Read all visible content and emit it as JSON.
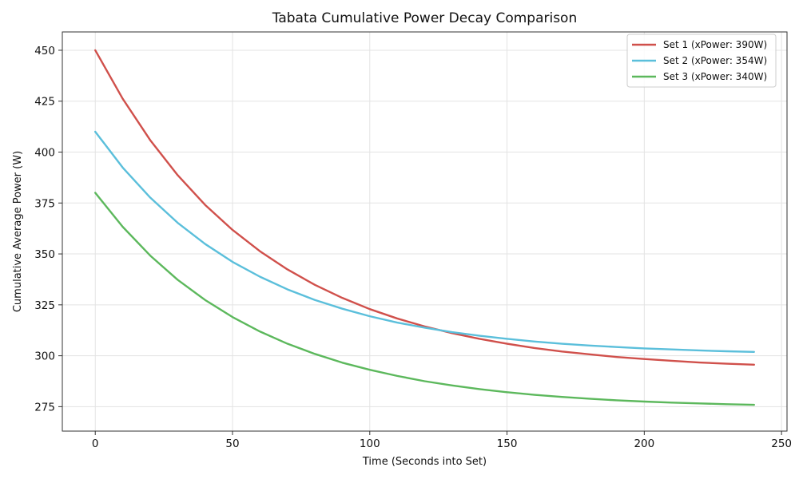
{
  "chart_data": {
    "type": "line",
    "title": "Tabata Cumulative Power Decay Comparison",
    "xlabel": "Time (Seconds into Set)",
    "ylabel": "Cumulative Average Power (W)",
    "xlim": [
      -12,
      252
    ],
    "ylim": [
      263,
      459
    ],
    "xticks": [
      0,
      50,
      100,
      150,
      200,
      250
    ],
    "yticks": [
      275,
      300,
      325,
      350,
      375,
      400,
      425,
      450
    ],
    "grid": true,
    "legend_position": "top-right",
    "x": [
      0,
      10,
      20,
      30,
      40,
      50,
      60,
      70,
      80,
      90,
      100,
      110,
      120,
      130,
      140,
      150,
      160,
      170,
      180,
      190,
      200,
      210,
      220,
      230,
      240
    ],
    "series": [
      {
        "name": "Set 1 (xPower: 390W)",
        "color": "#d0504b",
        "values": [
          450,
          426.2,
          405.9,
          388.7,
          374.1,
          361.8,
          351.3,
          342.4,
          334.8,
          328.4,
          322.9,
          318.3,
          314.4,
          311.1,
          308.3,
          305.9,
          303.8,
          302.1,
          300.7,
          299.4,
          298.4,
          297.5,
          296.7,
          296.1,
          295.6
        ]
      },
      {
        "name": "Set 2 (xPower: 354W)",
        "color": "#5bbfdb",
        "values": [
          410,
          392.4,
          377.7,
          365.3,
          354.9,
          346.1,
          338.8,
          332.6,
          327.4,
          323.1,
          319.4,
          316.3,
          313.8,
          311.6,
          309.8,
          308.3,
          307.0,
          305.9,
          305.0,
          304.3,
          303.6,
          303.1,
          302.6,
          302.2,
          301.9
        ]
      },
      {
        "name": "Set 3 (xPower: 340W)",
        "color": "#5cb85c",
        "values": [
          380,
          363.3,
          349.2,
          337.3,
          327.4,
          319.0,
          311.9,
          305.9,
          300.9,
          296.6,
          293.1,
          290.1,
          287.5,
          285.4,
          283.6,
          282.1,
          280.8,
          279.8,
          278.9,
          278.1,
          277.5,
          277.0,
          276.6,
          276.2,
          275.9
        ]
      }
    ]
  }
}
